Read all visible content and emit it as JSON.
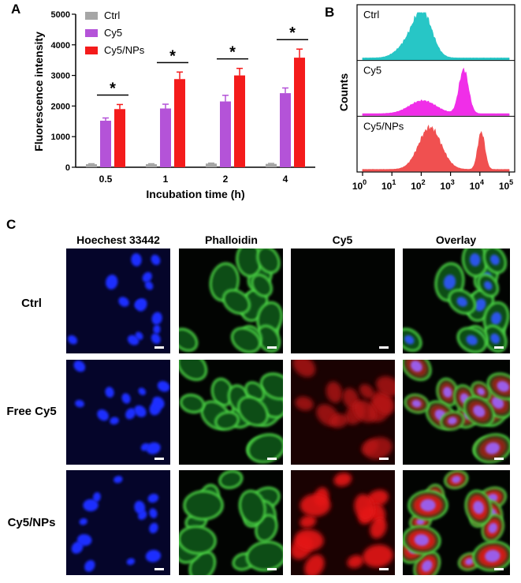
{
  "panels": {
    "a": "A",
    "b": "B",
    "c": "C"
  },
  "chart_data": [
    {
      "type": "bar",
      "panel": "A",
      "title": "",
      "xlabel": "Incubation time (h)",
      "ylabel": "Fluorescence intensity",
      "ylim": [
        0,
        5000
      ],
      "yticks": [
        "0",
        "1000",
        "2000",
        "3000",
        "4000",
        "5000"
      ],
      "categories": [
        "0.5",
        "1",
        "2",
        "4"
      ],
      "series": [
        {
          "name": "Ctrl",
          "color": "#a6a6a6",
          "values": [
            100,
            100,
            120,
            110
          ],
          "errors": [
            15,
            15,
            15,
            15
          ]
        },
        {
          "name": "Cy5",
          "color": "#b453d8",
          "values": [
            1520,
            1920,
            2150,
            2420
          ],
          "errors": [
            90,
            140,
            200,
            170
          ]
        },
        {
          "name": "Cy5/NPs",
          "color": "#f41b1b",
          "values": [
            1900,
            2880,
            3000,
            3580
          ],
          "errors": [
            150,
            230,
            230,
            280
          ]
        }
      ],
      "significance": [
        "*",
        "*",
        "*",
        "*"
      ],
      "legend_position": "top-left"
    },
    {
      "type": "area",
      "panel": "B",
      "title": "",
      "xlabel": "",
      "ylabel": "Counts",
      "xscale": "log",
      "xlim_exponent": [
        0,
        5
      ],
      "xtick_base": "10",
      "xtick_exponents": [
        "0",
        "1",
        "2",
        "3",
        "4",
        "5"
      ],
      "histograms": [
        {
          "name": "Ctrl",
          "color": "#27c6c6",
          "peaks": [
            {
              "log10_center": 2.05,
              "width": 0.32,
              "height": 0.95
            },
            {
              "log10_center": 1.5,
              "width": 0.35,
              "height": 0.25
            }
          ]
        },
        {
          "name": "Cy5",
          "color": "#f02ee8",
          "peaks": [
            {
              "log10_center": 3.45,
              "width": 0.16,
              "height": 0.95
            },
            {
              "log10_center": 2.05,
              "width": 0.45,
              "height": 0.28
            }
          ]
        },
        {
          "name": "Cy5/NPs",
          "color": "#f05050",
          "peaks": [
            {
              "log10_center": 2.3,
              "width": 0.38,
              "height": 0.9
            },
            {
              "log10_center": 4.05,
              "width": 0.12,
              "height": 0.8
            }
          ]
        }
      ]
    }
  ],
  "microscopy": {
    "columns": [
      "Hoechest 33442",
      "Phalloidin",
      "Cy5",
      "Overlay"
    ],
    "rows": [
      "Ctrl",
      "Free Cy5",
      "Cy5/NPs"
    ]
  }
}
